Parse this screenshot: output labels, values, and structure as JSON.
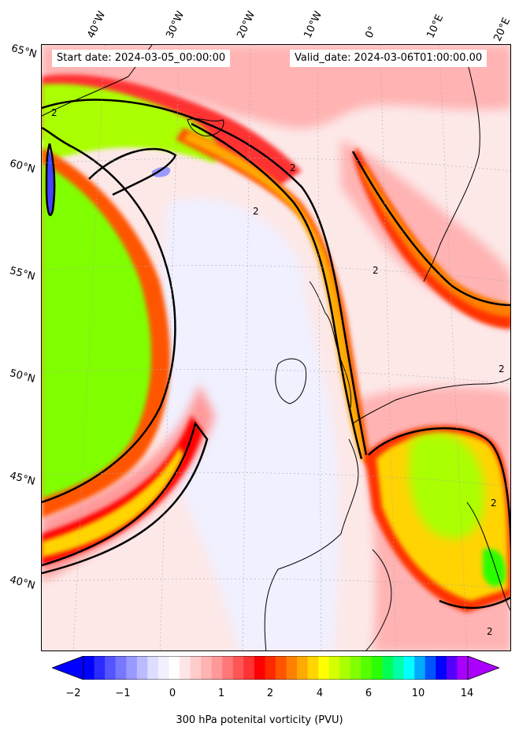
{
  "map": {
    "start_date": "Start date: 2024-03-05_00:00:00",
    "valid_date": "Valid_date: 2024-03-06T01:00:00.00",
    "lon_labels": [
      "40°W",
      "30°W",
      "20°W",
      "10°W",
      "0°",
      "10°E",
      "20°E"
    ],
    "lat_labels": [
      "65°N",
      "60°N",
      "55°N",
      "50°N",
      "45°N",
      "40°N"
    ],
    "contour_label": "2",
    "background_color": "#fde8e8",
    "contour_color": "#000000"
  },
  "colorbar": {
    "ticks": [
      "−2",
      "−1",
      "0",
      "1",
      "2",
      "4",
      "6",
      "10",
      "14"
    ],
    "label": "300 hPa potenital vorticity (PVU)",
    "colors": [
      "#0000ff",
      "#2b2bff",
      "#5555ff",
      "#7777ff",
      "#9999ff",
      "#bbbbff",
      "#ddddff",
      "#f0f0ff",
      "#ffffff",
      "#ffe6e6",
      "#ffcccc",
      "#ffb3b3",
      "#ff9999",
      "#ff7777",
      "#ff5555",
      "#ff3333",
      "#ff0000",
      "#ff2a00",
      "#ff5500",
      "#ff8000",
      "#ffaa00",
      "#ffd400",
      "#ffff00",
      "#d4ff00",
      "#aaff00",
      "#80ff00",
      "#55ff00",
      "#2bff00",
      "#00ff55",
      "#00ffaa",
      "#00ffff",
      "#00aaff",
      "#0055ff",
      "#0000ff",
      "#5500ff",
      "#aa00ff"
    ]
  }
}
